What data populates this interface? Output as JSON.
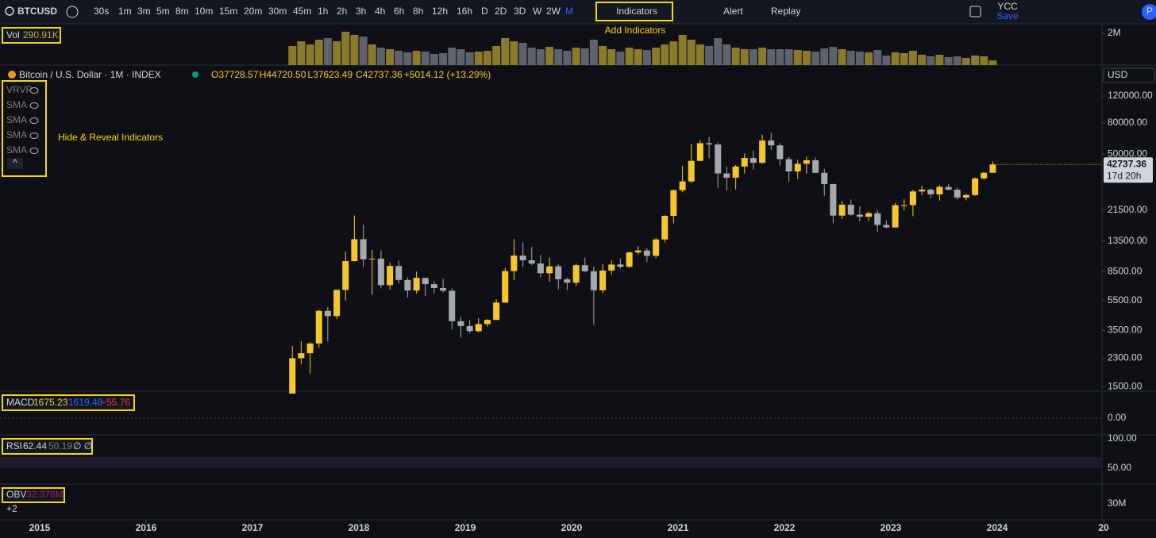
{
  "toolbar": {
    "symbol": "BTCUSD",
    "intervals": [
      "30s",
      "1m",
      "3m",
      "5m",
      "8m",
      "10m",
      "15m",
      "20m",
      "30m",
      "45m",
      "1h",
      "2h",
      "3h",
      "4h",
      "6h",
      "8h",
      "12h",
      "16h",
      "D",
      "2D",
      "3D",
      "W",
      "2W",
      "M"
    ],
    "indicators": "Indicators",
    "alert": "Alert",
    "replay": "Replay",
    "layout_name": "YCC",
    "save": "Save",
    "profile": "P"
  },
  "annotations": {
    "add_indicators": "Add Indicators",
    "hide_reveal": "Hide & Reveal Indicators"
  },
  "panes": {
    "macd": {
      "name": "MACD",
      "values": [
        "1675.23",
        "1619.48",
        "−55.76"
      ],
      "axis_labels": [
        "0.00"
      ]
    },
    "rsi": {
      "name": "RSI",
      "values": [
        "62.44",
        "50.19",
        "∅ ∅"
      ],
      "axis_labels": [
        "100.00",
        "50.00"
      ]
    },
    "obv": {
      "name": "OBV",
      "values": [
        "32.378M",
        "+2"
      ],
      "axis_labels": [
        "30M"
      ]
    }
  },
  "chart_data": {
    "type": "candlestick",
    "title": "Bitcoin / U.S. Dollar · 1M · INDEX",
    "ohlc_labels": [
      "O37728.57",
      "H44720.50",
      "L37623.49",
      "C42737.36"
    ],
    "change_label": "+5014.12 (+13.29%)",
    "currency": "USD",
    "countdown": "17d 20h",
    "indicators": [
      "VRVP",
      "SMA",
      "SMA",
      "SMA",
      "SMA"
    ],
    "up_color": "#f7c62f",
    "down_color": "#a6a8b0",
    "volume_up_color": "#8c7a2c",
    "volume_down_color": "#5f626c",
    "log_scale": true,
    "xlim": [
      2014.627,
      2024.985
    ],
    "xticks": [
      2015,
      2016,
      2017,
      2018,
      2019,
      2020,
      2021,
      2022,
      2023,
      2024,
      {
        "value": 2025,
        "label": "20"
      }
    ],
    "ylim": [
      1399,
      186900
    ],
    "yticks": [
      {
        "value": 120000,
        "label": "120000.00"
      },
      {
        "value": 80000,
        "label": "80000.00"
      },
      {
        "value": 50000,
        "label": "50000.00"
      },
      {
        "value": 21500,
        "label": "21500.00"
      },
      {
        "value": 13500,
        "label": "13500.00"
      },
      {
        "value": 8500,
        "label": "8500.00"
      },
      {
        "value": 5500,
        "label": "5500.00"
      },
      {
        "value": 3500,
        "label": "3500.00"
      },
      {
        "value": 2300,
        "label": "2300.00"
      },
      {
        "value": 1500,
        "label": "1500.00"
      }
    ],
    "volume_title": "Vol",
    "volume_label": "290.91K",
    "volume_ylim": [
      0,
      2400000
    ],
    "volume_yticks": [
      {
        "value": 2000000,
        "label": "2M"
      }
    ],
    "x": [
      2017.375,
      2017.458,
      2017.542,
      2017.625,
      2017.708,
      2017.792,
      2017.875,
      2017.958,
      2018.042,
      2018.125,
      2018.208,
      2018.292,
      2018.375,
      2018.458,
      2018.542,
      2018.625,
      2018.708,
      2018.792,
      2018.875,
      2018.958,
      2019.042,
      2019.125,
      2019.208,
      2019.292,
      2019.375,
      2019.458,
      2019.542,
      2019.625,
      2019.708,
      2019.792,
      2019.875,
      2019.958,
      2020.042,
      2020.125,
      2020.208,
      2020.292,
      2020.375,
      2020.458,
      2020.542,
      2020.625,
      2020.708,
      2020.792,
      2020.875,
      2020.958,
      2021.042,
      2021.125,
      2021.208,
      2021.292,
      2021.375,
      2021.458,
      2021.542,
      2021.625,
      2021.708,
      2021.792,
      2021.875,
      2021.958,
      2022.042,
      2022.125,
      2022.208,
      2022.292,
      2022.375,
      2022.458,
      2022.542,
      2022.625,
      2022.708,
      2022.792,
      2022.875,
      2022.958,
      2023.042,
      2023.125,
      2023.208,
      2023.292,
      2023.375,
      2023.458,
      2023.542,
      2023.625,
      2023.708,
      2023.792,
      2023.875,
      2023.958
    ],
    "ohlc": [
      [
        1350,
        2760,
        1350,
        2300
      ],
      [
        2300,
        2980,
        2100,
        2480
      ],
      [
        2480,
        2920,
        1830,
        2875
      ],
      [
        2875,
        4770,
        2700,
        4700
      ],
      [
        4700,
        4980,
        2970,
        4340
      ],
      [
        4340,
        6470,
        4150,
        6450
      ],
      [
        6450,
        11500,
        5500,
        9950
      ],
      [
        9950,
        19800,
        9900,
        13850
      ],
      [
        13850,
        17200,
        9100,
        10220
      ],
      [
        10220,
        11800,
        6000,
        10330
      ],
      [
        10330,
        11700,
        6600,
        6930
      ],
      [
        6930,
        9770,
        6450,
        9240
      ],
      [
        9240,
        10000,
        7100,
        7490
      ],
      [
        7490,
        7770,
        5750,
        6390
      ],
      [
        6390,
        8500,
        6100,
        7730
      ],
      [
        7730,
        7760,
        5880,
        7030
      ],
      [
        7030,
        7400,
        6100,
        6630
      ],
      [
        6630,
        7680,
        6200,
        6370
      ],
      [
        6370,
        6620,
        3550,
        4020
      ],
      [
        4020,
        4300,
        3130,
        3740
      ],
      [
        3740,
        4100,
        3350,
        3460
      ],
      [
        3460,
        4200,
        3380,
        3850
      ],
      [
        3850,
        4150,
        3700,
        4100
      ],
      [
        4100,
        5600,
        4080,
        5320
      ],
      [
        5320,
        9000,
        5300,
        8560
      ],
      [
        8560,
        13900,
        7500,
        10820
      ],
      [
        10820,
        13200,
        9100,
        10080
      ],
      [
        10080,
        12330,
        9350,
        9600
      ],
      [
        9600,
        10950,
        7800,
        8290
      ],
      [
        8290,
        10500,
        7300,
        9200
      ],
      [
        9200,
        9530,
        6500,
        7570
      ],
      [
        7570,
        7750,
        6430,
        7190
      ],
      [
        7190,
        9600,
        6850,
        9350
      ],
      [
        9350,
        10500,
        8400,
        8540
      ],
      [
        8540,
        9200,
        3800,
        6410
      ],
      [
        6410,
        9500,
        6150,
        8630
      ],
      [
        8630,
        10070,
        8100,
        9450
      ],
      [
        9450,
        10400,
        8900,
        9140
      ],
      [
        9140,
        11450,
        8970,
        11350
      ],
      [
        11350,
        12470,
        10950,
        11680
      ],
      [
        11680,
        12100,
        9860,
        10780
      ],
      [
        10780,
        14100,
        10400,
        13800
      ],
      [
        13800,
        19900,
        13200,
        19700
      ],
      [
        19700,
        29300,
        17600,
        28990
      ],
      [
        28990,
        41950,
        28100,
        33110
      ],
      [
        33110,
        58350,
        32300,
        45140
      ],
      [
        45140,
        61800,
        44950,
        58920
      ],
      [
        58920,
        64900,
        47000,
        57750
      ],
      [
        57750,
        59600,
        30000,
        37330
      ],
      [
        37330,
        41300,
        28800,
        35040
      ],
      [
        35040,
        42400,
        29300,
        41460
      ],
      [
        41460,
        50500,
        37300,
        47130
      ],
      [
        47130,
        52900,
        39600,
        43790
      ],
      [
        43790,
        67000,
        43300,
        61320
      ],
      [
        61320,
        69000,
        53300,
        57000
      ],
      [
        57000,
        59100,
        42000,
        46300
      ],
      [
        46300,
        47900,
        32900,
        38480
      ],
      [
        38480,
        45800,
        34300,
        43190
      ],
      [
        43190,
        48200,
        37200,
        45540
      ],
      [
        45540,
        47400,
        37600,
        37710
      ],
      [
        37710,
        40000,
        26700,
        31790
      ],
      [
        31790,
        31990,
        17600,
        19780
      ],
      [
        19780,
        24600,
        18800,
        23300
      ],
      [
        23300,
        25200,
        19600,
        20050
      ],
      [
        20050,
        22700,
        18150,
        19430
      ],
      [
        19430,
        21000,
        18200,
        20500
      ],
      [
        20500,
        21450,
        15500,
        17170
      ],
      [
        17170,
        18380,
        16300,
        16540
      ],
      [
        16540,
        23900,
        16500,
        23140
      ],
      [
        23140,
        25300,
        21400,
        23150
      ],
      [
        23150,
        29200,
        19600,
        28480
      ],
      [
        28480,
        31000,
        26900,
        29250
      ],
      [
        29250,
        29800,
        25800,
        27220
      ],
      [
        27220,
        31400,
        24800,
        30480
      ],
      [
        30480,
        31800,
        28900,
        29230
      ],
      [
        29230,
        30200,
        25200,
        25940
      ],
      [
        25940,
        27500,
        24900,
        26970
      ],
      [
        26970,
        35200,
        26600,
        34650
      ],
      [
        34650,
        38400,
        34000,
        37720
      ],
      [
        37728.57,
        44720.5,
        37623.49,
        42737.36
      ]
    ],
    "volume": [
      1200000,
      1500000,
      1300000,
      1600000,
      1700000,
      1500000,
      2100000,
      1900000,
      1800000,
      1300000,
      1100000,
      1000000,
      900000,
      800000,
      900000,
      850000,
      700000,
      750000,
      1100000,
      1000000,
      800000,
      850000,
      900000,
      1200000,
      1700000,
      1500000,
      1400000,
      1100000,
      1000000,
      1150000,
      1000000,
      900000,
      1100000,
      1050000,
      1600000,
      1200000,
      1000000,
      850000,
      1100000,
      1000000,
      950000,
      1100000,
      1300000,
      1500000,
      1900000,
      1600000,
      1300000,
      1200000,
      1700000,
      1300000,
      1100000,
      1000000,
      1000000,
      1100000,
      1000000,
      1000000,
      1000000,
      950000,
      900000,
      850000,
      1050000,
      1150000,
      1000000,
      900000,
      850000,
      800000,
      950000,
      600000,
      800000,
      750000,
      900000,
      650000,
      550000,
      650000,
      500000,
      550000,
      450000,
      600000,
      550000,
      290910
    ]
  }
}
